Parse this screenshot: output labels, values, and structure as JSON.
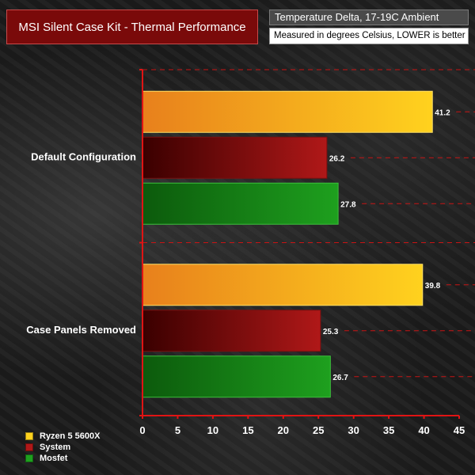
{
  "header": {
    "title": "MSI Silent Case Kit - Thermal Performance",
    "subtitle": "Temperature Delta, 17-19C Ambient",
    "note": "Measured in degrees Celsius, LOWER is better"
  },
  "chart_data": {
    "type": "bar",
    "orientation": "horizontal",
    "categories": [
      "Default Configuration",
      "Case Panels Removed"
    ],
    "series": [
      {
        "name": "Ryzen 5 5600X",
        "values": [
          41.2,
          39.8
        ],
        "color_start": "#e8801c",
        "color_end": "#ffd21e"
      },
      {
        "name": "System",
        "values": [
          26.2,
          25.3
        ],
        "color_start": "#3a0000",
        "color_end": "#b01818"
      },
      {
        "name": "Mosfet",
        "values": [
          27.8,
          26.7
        ],
        "color_start": "#0c5a0c",
        "color_end": "#1ea01e"
      }
    ],
    "xlim": [
      0,
      45
    ],
    "xticks": [
      0,
      5,
      10,
      15,
      20,
      25,
      30,
      35,
      40,
      45
    ],
    "gridlines": "dashed",
    "gridline_color": "#c81414",
    "axis_color": "#e01414",
    "legend_position": "bottom-left"
  }
}
